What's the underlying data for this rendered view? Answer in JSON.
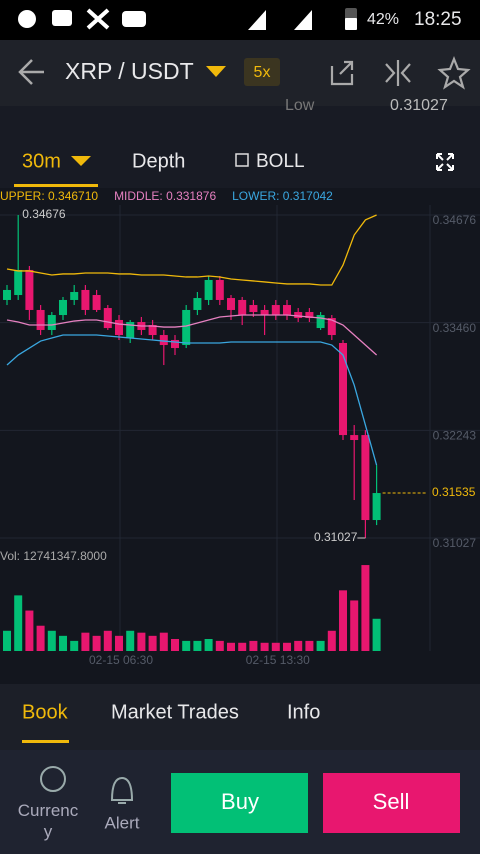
{
  "status_bar": {
    "battery": "42%",
    "time": "18:25"
  },
  "header": {
    "pair": "XRP / USDT",
    "leverage": "5x"
  },
  "ticker": {
    "label": "Low",
    "value": "0.31027"
  },
  "toolbar": {
    "interval": "30m",
    "depth": "Depth",
    "indicator": "BOLL"
  },
  "chart_data": {
    "type": "candlestick",
    "categories": [
      null,
      null,
      null,
      null,
      null,
      null,
      null,
      null,
      null,
      null,
      "02-15 06:30",
      null,
      null,
      null,
      null,
      null,
      null,
      null,
      null,
      null,
      null,
      null,
      null,
      null,
      "02-15 13:30",
      null,
      null,
      null,
      null,
      null,
      null,
      null,
      null,
      null
    ],
    "open": [
      0.33716,
      0.33772,
      0.34055,
      0.33603,
      0.33377,
      0.33546,
      0.33716,
      0.33829,
      0.33772,
      0.33625,
      0.3349,
      0.33286,
      0.33467,
      0.33433,
      0.3332,
      0.33264,
      0.33207,
      0.33603,
      0.33716,
      0.33942,
      0.33738,
      0.33716,
      0.33659,
      0.33603,
      0.33659,
      0.33659,
      0.3358,
      0.3358,
      0.33399,
      0.33512,
      0.3323,
      0.3219,
      0.3219,
      0.3123
    ],
    "high": [
      0.33885,
      0.34676,
      0.341,
      0.33659,
      0.3358,
      0.3375,
      0.33885,
      0.33885,
      0.33829,
      0.33659,
      0.33546,
      0.3349,
      0.33524,
      0.3349,
      0.33377,
      0.3332,
      0.33659,
      0.33806,
      0.33987,
      0.33987,
      0.33772,
      0.3375,
      0.33716,
      0.33659,
      0.33716,
      0.33716,
      0.33625,
      0.33625,
      0.3358,
      0.33546,
      0.33264,
      0.32303,
      0.32246,
      0.3185
    ],
    "low": [
      0.33659,
      0.33716,
      0.3349,
      0.3332,
      0.3332,
      0.3349,
      0.33659,
      0.33546,
      0.3358,
      0.33377,
      0.33264,
      0.3323,
      0.3332,
      0.33264,
      0.32981,
      0.33094,
      0.33173,
      0.33546,
      0.33659,
      0.33659,
      0.3349,
      0.33433,
      0.33524,
      0.3332,
      0.3349,
      0.3349,
      0.33467,
      0.33467,
      0.33377,
      0.33264,
      0.32134,
      0.31456,
      0.31027,
      0.31173
    ],
    "close": [
      0.33829,
      0.34055,
      0.33603,
      0.33377,
      0.33546,
      0.33716,
      0.33806,
      0.33603,
      0.33603,
      0.33399,
      0.3332,
      0.33467,
      0.33377,
      0.3332,
      0.33207,
      0.33173,
      0.33603,
      0.33738,
      0.33942,
      0.33716,
      0.33603,
      0.33546,
      0.3358,
      0.33546,
      0.33546,
      0.33546,
      0.33512,
      0.33512,
      0.33546,
      0.3332,
      0.3219,
      0.32134,
      0.3123,
      0.31535
    ],
    "up_color": "#02c076",
    "down_color": "#e8176f",
    "bands": [
      {
        "name": "UPPER: 0.346710",
        "color": "#f0b90b",
        "values": [
          0.34066,
          0.34044,
          0.34044,
          0.34021,
          0.33998,
          0.3401,
          0.3401,
          0.34021,
          0.34021,
          0.34021,
          0.3401,
          0.3401,
          0.33998,
          0.33998,
          0.33998,
          0.33987,
          0.33976,
          0.33976,
          0.33987,
          0.33976,
          0.33953,
          0.33942,
          0.33931,
          0.3392,
          0.33908,
          0.33897,
          0.33897,
          0.33897,
          0.33885,
          0.33885,
          0.3411,
          0.3445,
          0.3462,
          0.34676
        ]
      },
      {
        "name": "MIDDLE: 0.331876",
        "color": "#e580c0",
        "values": [
          0.3349,
          0.33467,
          0.33433,
          0.33433,
          0.33433,
          0.33456,
          0.33478,
          0.3349,
          0.3349,
          0.33467,
          0.33444,
          0.33433,
          0.33422,
          0.33422,
          0.3341,
          0.3341,
          0.33422,
          0.33456,
          0.3349,
          0.33524,
          0.33535,
          0.33546,
          0.33546,
          0.33546,
          0.33546,
          0.33546,
          0.33535,
          0.33524,
          0.33512,
          0.3349,
          0.33433,
          0.3332,
          0.33207,
          0.33094
        ]
      },
      {
        "name": "LOWER: 0.317042",
        "color": "#3aa7e0",
        "values": [
          0.32981,
          0.33094,
          0.33173,
          0.33252,
          0.33286,
          0.3332,
          0.3332,
          0.3332,
          0.3332,
          0.33309,
          0.33298,
          0.33286,
          0.33275,
          0.33264,
          0.33252,
          0.33241,
          0.3323,
          0.3323,
          0.3323,
          0.3323,
          0.33241,
          0.33241,
          0.33241,
          0.33241,
          0.33241,
          0.33241,
          0.33241,
          0.33241,
          0.33241,
          0.33207,
          0.33094,
          0.32755,
          0.32303,
          0.3185
        ]
      }
    ],
    "ylim": [
      0.31027,
      0.34676
    ],
    "yticks": [
      0.31027,
      0.32243,
      {
        "value": 0.3346,
        "label": "0.33460"
      },
      0.34676
    ],
    "last_price": 0.31535,
    "last_price_color": "#f0b90b",
    "high_mark": 0.34676,
    "low_mark": 0.31027,
    "volume": {
      "label": "Vol: 12741347.8000",
      "ylim": [
        0,
        14400000
      ],
      "values": [
        3200000,
        8800000,
        6400000,
        4000000,
        3200000,
        2400000,
        1600000,
        2900000,
        2400000,
        3200000,
        2400000,
        3200000,
        2900000,
        2400000,
        2900000,
        1900000,
        1600000,
        1600000,
        1900000,
        1600000,
        1300000,
        1300000,
        1600000,
        1300000,
        1300000,
        1300000,
        1600000,
        1600000,
        1600000,
        3200000,
        9600000,
        8000000,
        13600000,
        5100000
      ]
    }
  },
  "tabs": [
    "Book",
    "Market Trades",
    "Info"
  ],
  "footer": {
    "currency": "Currency",
    "alert": "Alert",
    "buy": "Buy",
    "sell": "Sell"
  }
}
